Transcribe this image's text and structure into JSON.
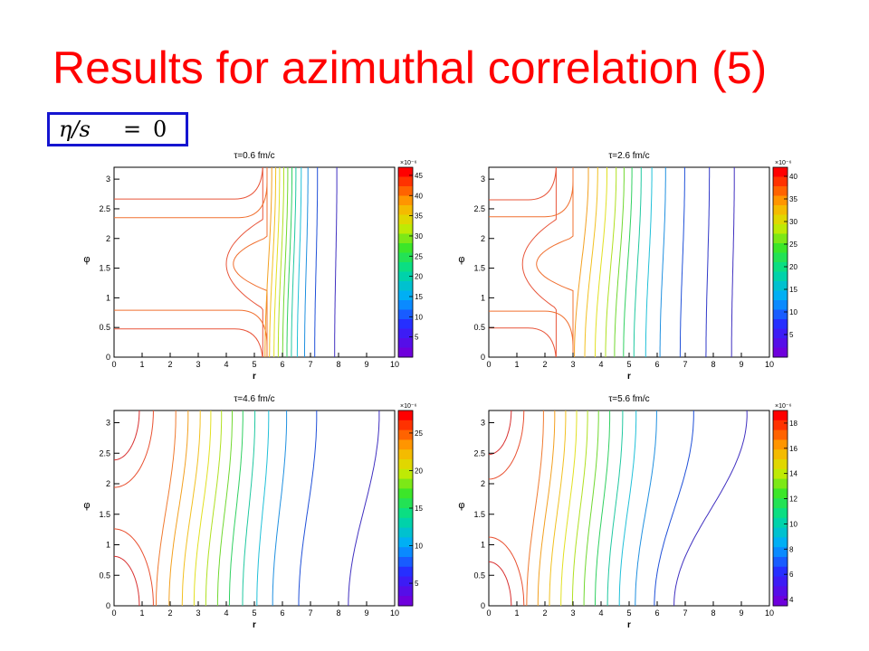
{
  "slide": {
    "title": "Results for azimuthal correlation (5)",
    "formula": {
      "lhs": "η/s",
      "eq": "=",
      "rhs": "0"
    }
  },
  "colors": {
    "title": "#ff0000",
    "formula_border": "#1515d0"
  },
  "chart_data": [
    {
      "type": "contour",
      "title": "τ=0.6 fm/c",
      "xlabel": "r",
      "ylabel": "φ",
      "xlim": [
        0,
        10
      ],
      "ylim": [
        0,
        3.2
      ],
      "xticks": [
        "0",
        "1",
        "2",
        "3",
        "4",
        "5",
        "6",
        "7",
        "8",
        "9",
        "10"
      ],
      "yticks": [
        "0",
        "0.5",
        "1",
        "1.5",
        "2",
        "2.5",
        "3"
      ],
      "colorbar": {
        "exponent": "×10⁻⁶",
        "min": 0,
        "max": 47,
        "ticks": [
          "5",
          "10",
          "15",
          "20",
          "25",
          "30",
          "35",
          "40",
          "45"
        ]
      },
      "levels": [
        {
          "kind": "saddle",
          "r_inner": 4.0,
          "r_outer": 5.3,
          "phi_half": 0.75,
          "color": "#e8553a"
        },
        {
          "kind": "saddle",
          "r_inner": 4.25,
          "r_outer": 5.45,
          "phi_half": 0.45,
          "color": "#f07030"
        },
        {
          "kind": "wavy",
          "r": 5.5,
          "amp": 0.12,
          "color": "#f3a020"
        },
        {
          "kind": "wavy",
          "r": 5.65,
          "amp": 0.11,
          "color": "#f2c020"
        },
        {
          "kind": "wavy",
          "r": 5.8,
          "amp": 0.1,
          "color": "#e2e020"
        },
        {
          "kind": "wavy",
          "r": 5.95,
          "amp": 0.1,
          "color": "#b0e020"
        },
        {
          "kind": "wavy",
          "r": 6.1,
          "amp": 0.09,
          "color": "#70d830"
        },
        {
          "kind": "wavy",
          "r": 6.25,
          "amp": 0.09,
          "color": "#30d060"
        },
        {
          "kind": "wavy",
          "r": 6.4,
          "amp": 0.08,
          "color": "#20c8a0"
        },
        {
          "kind": "wavy",
          "r": 6.6,
          "amp": 0.07,
          "color": "#20c0d8"
        },
        {
          "kind": "wavy",
          "r": 6.85,
          "amp": 0.06,
          "color": "#2090e0"
        },
        {
          "kind": "wavy",
          "r": 7.2,
          "amp": 0.05,
          "color": "#2050d8"
        },
        {
          "kind": "wavy",
          "r": 7.9,
          "amp": 0.04,
          "color": "#4030c0"
        }
      ]
    },
    {
      "type": "contour",
      "title": "τ=2.6 fm/c",
      "xlabel": "r",
      "ylabel": "φ",
      "xlim": [
        0,
        10
      ],
      "ylim": [
        0,
        3.2
      ],
      "xticks": [
        "0",
        "1",
        "2",
        "3",
        "4",
        "5",
        "6",
        "7",
        "8",
        "9",
        "10"
      ],
      "yticks": [
        "0",
        "0.5",
        "1",
        "1.5",
        "2",
        "2.5",
        "3"
      ],
      "colorbar": {
        "exponent": "×10⁻⁶",
        "min": 0,
        "max": 42,
        "ticks": [
          "5",
          "10",
          "15",
          "20",
          "25",
          "30",
          "35",
          "40"
        ]
      },
      "levels": [
        {
          "kind": "saddle",
          "r_inner": 1.2,
          "r_outer": 2.4,
          "phi_half": 0.75,
          "color": "#e8553a"
        },
        {
          "kind": "saddle",
          "r_inner": 1.7,
          "r_outer": 3.0,
          "phi_half": 0.45,
          "color": "#f07030"
        },
        {
          "kind": "wavy",
          "r": 3.3,
          "amp": 0.25,
          "color": "#f3a020"
        },
        {
          "kind": "wavy",
          "r": 3.65,
          "amp": 0.23,
          "color": "#f2c020"
        },
        {
          "kind": "wavy",
          "r": 4.0,
          "amp": 0.21,
          "color": "#e2e020"
        },
        {
          "kind": "wavy",
          "r": 4.35,
          "amp": 0.19,
          "color": "#b0e020"
        },
        {
          "kind": "wavy",
          "r": 4.65,
          "amp": 0.17,
          "color": "#70d830"
        },
        {
          "kind": "wavy",
          "r": 4.95,
          "amp": 0.15,
          "color": "#30d060"
        },
        {
          "kind": "wavy",
          "r": 5.3,
          "amp": 0.13,
          "color": "#20c8a0"
        },
        {
          "kind": "wavy",
          "r": 5.7,
          "amp": 0.11,
          "color": "#20c0d8"
        },
        {
          "kind": "wavy",
          "r": 6.2,
          "amp": 0.1,
          "color": "#2090e0"
        },
        {
          "kind": "wavy",
          "r": 6.9,
          "amp": 0.08,
          "color": "#2050d8"
        },
        {
          "kind": "wavy",
          "r": 7.8,
          "amp": 0.06,
          "color": "#3038c8"
        },
        {
          "kind": "wavy",
          "r": 8.7,
          "amp": 0.05,
          "color": "#4030c0"
        }
      ]
    },
    {
      "type": "contour",
      "title": "τ=4.6 fm/c",
      "xlabel": "r",
      "ylabel": "φ",
      "xlim": [
        0,
        10
      ],
      "ylim": [
        0,
        3.2
      ],
      "xticks": [
        "0",
        "1",
        "2",
        "3",
        "4",
        "5",
        "6",
        "7",
        "8",
        "9",
        "10"
      ],
      "yticks": [
        "0",
        "0.5",
        "1",
        "1.5",
        "2",
        "2.5",
        "3"
      ],
      "colorbar": {
        "exponent": "×10⁻⁶",
        "min": 2,
        "max": 28,
        "ticks": [
          "5",
          "10",
          "15",
          "20",
          "25"
        ]
      },
      "levels": [
        {
          "kind": "corner",
          "r": 0.9,
          "color": "#d83030"
        },
        {
          "kind": "corner",
          "r": 1.4,
          "color": "#e85030"
        },
        {
          "kind": "wavy",
          "r": 1.85,
          "amp": 0.35,
          "color": "#f07a30"
        },
        {
          "kind": "wavy",
          "r": 2.3,
          "amp": 0.34,
          "color": "#f3a020"
        },
        {
          "kind": "wavy",
          "r": 2.75,
          "amp": 0.32,
          "color": "#f2c020"
        },
        {
          "kind": "wavy",
          "r": 3.15,
          "amp": 0.3,
          "color": "#e2e020"
        },
        {
          "kind": "wavy",
          "r": 3.55,
          "amp": 0.28,
          "color": "#b0e020"
        },
        {
          "kind": "wavy",
          "r": 3.95,
          "amp": 0.26,
          "color": "#70d830"
        },
        {
          "kind": "wavy",
          "r": 4.35,
          "amp": 0.24,
          "color": "#30d060"
        },
        {
          "kind": "wavy",
          "r": 4.8,
          "amp": 0.22,
          "color": "#20c8a0"
        },
        {
          "kind": "wavy",
          "r": 5.3,
          "amp": 0.21,
          "color": "#20c0d8"
        },
        {
          "kind": "wavy",
          "r": 5.9,
          "amp": 0.25,
          "color": "#2090e0"
        },
        {
          "kind": "wavy",
          "r": 6.9,
          "amp": 0.32,
          "color": "#2050d8"
        },
        {
          "kind": "wavy",
          "r": 8.9,
          "amp": 0.55,
          "color": "#4030c0"
        }
      ]
    },
    {
      "type": "contour",
      "title": "τ=5.6 fm/c",
      "xlabel": "r",
      "ylabel": "φ",
      "xlim": [
        0,
        10
      ],
      "ylim": [
        0,
        3.2
      ],
      "xticks": [
        "0",
        "1",
        "2",
        "3",
        "4",
        "5",
        "6",
        "7",
        "8",
        "9",
        "10"
      ],
      "yticks": [
        "0",
        "0.5",
        "1",
        "1.5",
        "2",
        "2.5",
        "3"
      ],
      "colorbar": {
        "exponent": "×10⁻⁶",
        "min": 3.5,
        "max": 19,
        "ticks": [
          "4",
          "6",
          "8",
          "10",
          "12",
          "14",
          "16",
          "18"
        ]
      },
      "levels": [
        {
          "kind": "corner",
          "r": 0.8,
          "color": "#d83030"
        },
        {
          "kind": "corner",
          "r": 1.25,
          "color": "#e85030"
        },
        {
          "kind": "wavy",
          "r": 1.65,
          "amp": 0.3,
          "color": "#f07a30"
        },
        {
          "kind": "wavy",
          "r": 2.05,
          "amp": 0.3,
          "color": "#f3a020"
        },
        {
          "kind": "wavy",
          "r": 2.45,
          "amp": 0.29,
          "color": "#f2c020"
        },
        {
          "kind": "wavy",
          "r": 2.85,
          "amp": 0.28,
          "color": "#e2e020"
        },
        {
          "kind": "wavy",
          "r": 3.25,
          "amp": 0.27,
          "color": "#b0e020"
        },
        {
          "kind": "wavy",
          "r": 3.65,
          "amp": 0.26,
          "color": "#70d830"
        },
        {
          "kind": "wavy",
          "r": 4.05,
          "amp": 0.26,
          "color": "#30d060"
        },
        {
          "kind": "wavy",
          "r": 4.5,
          "amp": 0.27,
          "color": "#20c8a0"
        },
        {
          "kind": "wavy",
          "r": 4.95,
          "amp": 0.3,
          "color": "#20c0d8"
        },
        {
          "kind": "wavy",
          "r": 5.6,
          "amp": 0.38,
          "color": "#2090e0"
        },
        {
          "kind": "wavy",
          "r": 6.6,
          "amp": 0.7,
          "color": "#2050d8"
        },
        {
          "kind": "wavy",
          "r": 7.9,
          "amp": 1.3,
          "color": "#4030c0"
        }
      ]
    }
  ]
}
